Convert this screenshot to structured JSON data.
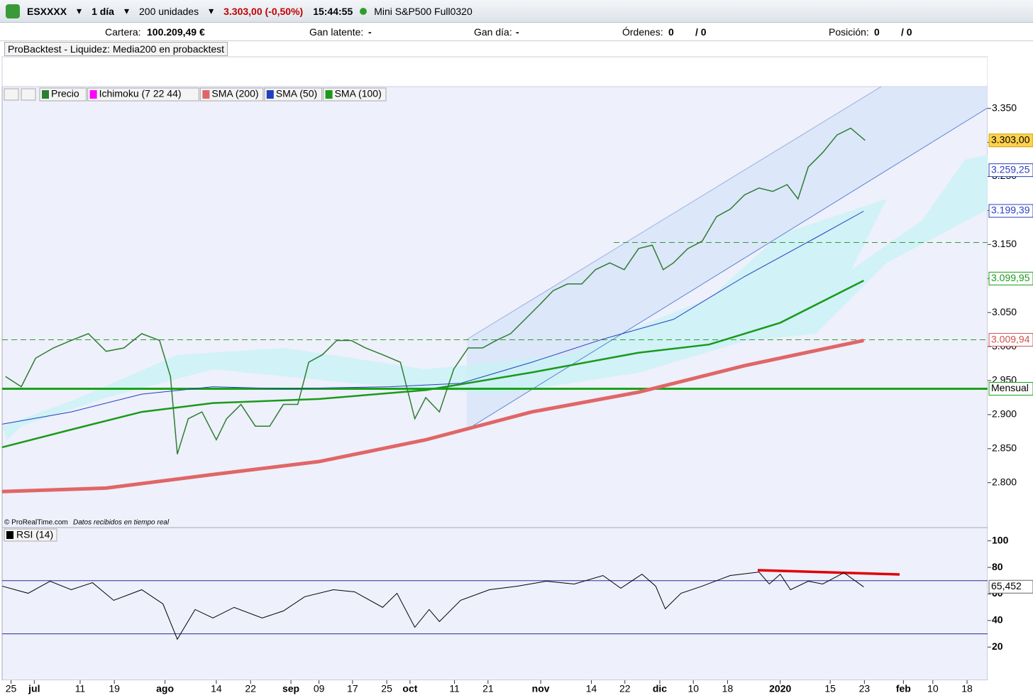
{
  "toolbar": {
    "symbol": "ESXXXX",
    "period": "1 día",
    "units": "200 unidades",
    "quote": "3.303,00 (-0,50%)",
    "time": "15:44:55",
    "instrument": "Mini S&P500 Full0320"
  },
  "account": {
    "cartera_label": "Cartera:",
    "cartera": "100.209,49 €",
    "latente_label": "Gan latente:",
    "latente": "-",
    "dia_label": "Gan día:",
    "dia": "-",
    "ordenes_label": "Órdenes:",
    "ordenes_a": "0",
    "ordenes_b": "/ 0",
    "posicion_label": "Posición:",
    "posicion_a": "0",
    "posicion_b": "/ 0"
  },
  "backtest": "ProBacktest - Liquidez: Media200 en probacktest",
  "chart_data": [
    {
      "type": "line",
      "overlays": [
        "Ichimoku (7 22 44)"
      ],
      "xlim": [
        0,
        144
      ],
      "ylim": [
        2734,
        3382
      ],
      "yticks": [
        {
          "value": 2800,
          "label": "2.800"
        },
        {
          "value": 2850,
          "label": "2.850"
        },
        {
          "value": 2900,
          "label": "2.900"
        },
        {
          "value": 2950,
          "label": "2.950"
        },
        {
          "value": 3000,
          "label": "3.000"
        },
        {
          "value": 3050,
          "label": "3.050"
        },
        {
          "value": 3100,
          "label": "3.100"
        },
        {
          "value": 3150,
          "label": "3.150"
        },
        {
          "value": 3200,
          "label": "3.200"
        },
        {
          "value": 3250,
          "label": "3.250"
        },
        {
          "value": 3300,
          "label": "3.300"
        },
        {
          "value": 3350,
          "label": "3.350"
        }
      ],
      "xticks": [
        {
          "value": 1.3,
          "label": "25"
        },
        {
          "value": 4.7,
          "label": "jul"
        },
        {
          "value": 11.4,
          "label": "11"
        },
        {
          "value": 16.4,
          "label": "19"
        },
        {
          "value": 23.8,
          "label": "ago"
        },
        {
          "value": 31.3,
          "label": "14"
        },
        {
          "value": 36.3,
          "label": "22"
        },
        {
          "value": 42.2,
          "label": "sep"
        },
        {
          "value": 46.3,
          "label": "09"
        },
        {
          "value": 51.2,
          "label": "17"
        },
        {
          "value": 56.2,
          "label": "25"
        },
        {
          "value": 59.6,
          "label": "oct"
        },
        {
          "value": 66.1,
          "label": "11"
        },
        {
          "value": 71,
          "label": "21"
        },
        {
          "value": 78.7,
          "label": "nov"
        },
        {
          "value": 86.1,
          "label": "14"
        },
        {
          "value": 91,
          "label": "22"
        },
        {
          "value": 96.1,
          "label": "dic"
        },
        {
          "value": 101,
          "label": "10"
        },
        {
          "value": 106,
          "label": "18"
        },
        {
          "value": 113.7,
          "label": "2020"
        },
        {
          "value": 121,
          "label": "15"
        },
        {
          "value": 126,
          "label": "23"
        },
        {
          "value": 131.7,
          "label": "feb"
        },
        {
          "value": 136,
          "label": "10"
        },
        {
          "value": 141,
          "label": "18"
        }
      ],
      "series": [
        {
          "name": "Precio",
          "color": "#2e7d32",
          "width": 1.5,
          "x": [
            0.5,
            2.8,
            4.9,
            7.5,
            10.1,
            12.6,
            15.2,
            17.8,
            20.4,
            23.0,
            24.6,
            25.6,
            27.2,
            29.2,
            31.3,
            32.8,
            34.9,
            37.0,
            39.1,
            41.1,
            43.2,
            44.8,
            46.8,
            48.9,
            51.0,
            53.1,
            55.6,
            58.2,
            60.3,
            61.9,
            63.9,
            66.0,
            68.1,
            70.2,
            72.2,
            74.3,
            76.4,
            78.5,
            80.5,
            82.6,
            84.7,
            86.7,
            88.8,
            90.9,
            93.0,
            95.0,
            96.6,
            98.1,
            100.2,
            102.3,
            104.4,
            106.4,
            108.5,
            110.6,
            112.6,
            114.7,
            116.3,
            117.8,
            119.9,
            122.0,
            124.0,
            126.1
          ],
          "values": [
            2956,
            2941,
            2983,
            2998,
            3009,
            3019,
            2993,
            2998,
            3019,
            3009,
            2956,
            2842,
            2894,
            2904,
            2863,
            2894,
            2915,
            2883,
            2883,
            2915,
            2915,
            2977,
            2988,
            3009,
            3009,
            2998,
            2988,
            2977,
            2894,
            2925,
            2904,
            2967,
            2998,
            2998,
            3009,
            3019,
            3040,
            3061,
            3082,
            3092,
            3092,
            3113,
            3123,
            3113,
            3144,
            3149,
            3113,
            3123,
            3144,
            3155,
            3191,
            3202,
            3223,
            3233,
            3228,
            3238,
            3217,
            3264,
            3285,
            3311,
            3321,
            3303
          ]
        },
        {
          "name": "SMA (200)",
          "color": "#e06666",
          "width": 5,
          "x": [
            0,
            15.2,
            30.8,
            46.3,
            61.9,
            77.4,
            93.0,
            108.5,
            125.9
          ],
          "values": [
            2787,
            2792,
            2812,
            2831,
            2863,
            2904,
            2933,
            2972,
            3009
          ]
        },
        {
          "name": "SMA (50)",
          "color": "#1f3fbf",
          "width": 1,
          "x": [
            0,
            10.1,
            20.4,
            30.8,
            41.1,
            56.7,
            67.0,
            77.4,
            87.8,
            98.1,
            108.5,
            118.9,
            125.9
          ],
          "values": [
            2886,
            2904,
            2930,
            2941,
            2938,
            2941,
            2946,
            2977,
            3011,
            3040,
            3103,
            3160,
            3199
          ]
        },
        {
          "name": "SMA (100)",
          "color": "#1a9a1a",
          "width": 2.5,
          "x": [
            0,
            10.1,
            20.4,
            30.8,
            46.3,
            61.9,
            77.4,
            93.0,
            103.3,
            113.7,
            125.9
          ],
          "values": [
            2852,
            2878,
            2904,
            2917,
            2923,
            2936,
            2962,
            2991,
            3003,
            3035,
            3097
          ]
        }
      ],
      "levels": [
        {
          "value": 2938,
          "label": "Mensual",
          "color": "#1aa31a"
        },
        {
          "value": 3010,
          "color": "#2e9e2e"
        },
        {
          "value": 3153,
          "color": "#2e9e2e"
        }
      ],
      "price_labels": [
        {
          "value": 3303,
          "label": "3.303,00",
          "color": "#ffd24d"
        },
        {
          "value": 3259.25,
          "label": "3.259,25",
          "color": "#2a3fbf"
        },
        {
          "value": 3199.39,
          "label": "3.199,39",
          "color": "#2a3fbf"
        },
        {
          "value": 3099.95,
          "label": "3.099,95",
          "color": "#1a9a1a"
        },
        {
          "value": 3009.94,
          "label": "3.009,94",
          "color": "#d05050"
        }
      ],
      "credit": "© ProRealTime.com",
      "credit_note": "Datos recibidos en tiempo real"
    },
    {
      "type": "line",
      "title": "RSI (14)",
      "xlim": [
        0,
        144
      ],
      "ylim": [
        -5,
        110
      ],
      "yticks": [
        20,
        40,
        60,
        80,
        100
      ],
      "levels": [
        70,
        30
      ],
      "series": [
        {
          "name": "RSI (14)",
          "color": "#000000",
          "x": [
            0,
            3.8,
            7,
            10.1,
            13.2,
            16.3,
            20.4,
            23.5,
            25.6,
            28.2,
            30.8,
            33.9,
            38,
            41.1,
            44.2,
            48.4,
            51.5,
            55.6,
            57.7,
            60.3,
            62.4,
            63.9,
            67,
            71.2,
            75.3,
            79.5,
            83.6,
            87.8,
            90.4,
            93.5,
            95.5,
            96.9,
            99.2,
            102.3,
            106.4,
            110.6,
            112.1,
            113.7,
            115.2,
            117.8,
            119.9,
            123,
            125.9
          ],
          "values": [
            65.9,
            60.5,
            69.6,
            63.2,
            68.5,
            55.2,
            63.2,
            52.5,
            25.9,
            48.3,
            41.9,
            49.9,
            41.9,
            47.2,
            57.9,
            63.2,
            61.6,
            49.9,
            60.5,
            34.9,
            48.3,
            39.2,
            55.2,
            63.2,
            65.9,
            69.6,
            67.5,
            73.9,
            64.3,
            74.9,
            65.9,
            48.8,
            60.5,
            65.9,
            73.9,
            76.5,
            67.5,
            74.9,
            63.2,
            69.6,
            67.5,
            76.0,
            65.3
          ]
        }
      ],
      "value_label": {
        "value": 65.452,
        "label": "65,452"
      }
    }
  ]
}
